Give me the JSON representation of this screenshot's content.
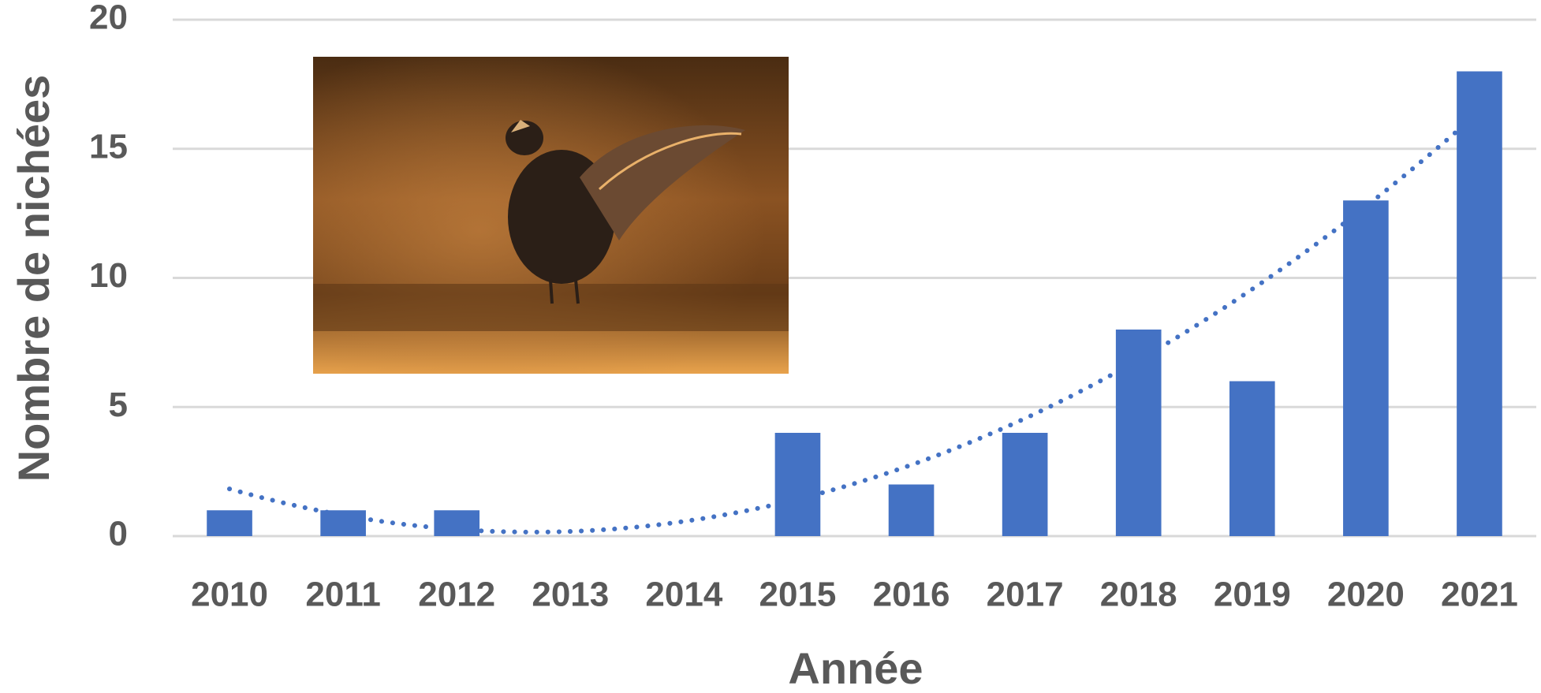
{
  "chart_data": {
    "type": "bar",
    "x_axis_title": "Année",
    "y_axis_title": "Nombre de nichées",
    "categories": [
      "2010",
      "2011",
      "2012",
      "2013",
      "2014",
      "2015",
      "2016",
      "2017",
      "2018",
      "2019",
      "2020",
      "2021"
    ],
    "values": [
      1,
      1,
      1,
      0,
      0,
      4,
      2,
      4,
      8,
      6,
      13,
      18
    ],
    "color": "#4472c4",
    "ylim": [
      0,
      20
    ],
    "yticks": [
      0,
      5,
      10,
      15,
      20
    ],
    "grid": true,
    "trendline": {
      "type": "polynomial",
      "order": 2,
      "color": "#4472c4",
      "style": "dotted"
    }
  }
}
